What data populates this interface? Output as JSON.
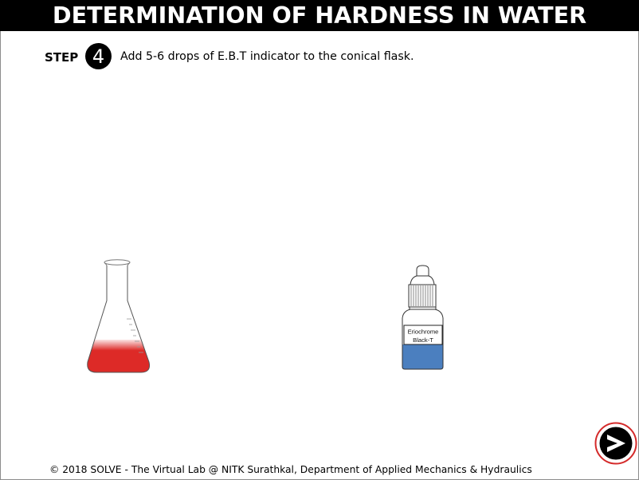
{
  "header": {
    "title": "DETERMINATION OF HARDNESS IN WATER"
  },
  "step": {
    "label": "STEP",
    "number": "4",
    "instruction": "Add 5-6 drops of E.B.T indicator to the conical flask."
  },
  "apparatus": {
    "flask": {
      "icon": "conical-flask-icon",
      "liquid_color": "#dd2a27"
    },
    "bottle": {
      "icon": "dropper-bottle-icon",
      "label_lines": [
        "Eriochrome",
        "Black-T"
      ],
      "liquid_color": "#4b7fbf"
    }
  },
  "navigation": {
    "next_icon": "next-arrow-icon"
  },
  "footer": {
    "copyright": "© 2018 SOLVE - The Virtual Lab @ NITK Surathkal, Department of Applied Mechanics & Hydraulics"
  },
  "colors": {
    "header_background": "#000000",
    "header_text": "#ffffff",
    "step_badge": "#000000",
    "next_button_ring": "#d42a2a",
    "next_button_fill": "#000000"
  }
}
